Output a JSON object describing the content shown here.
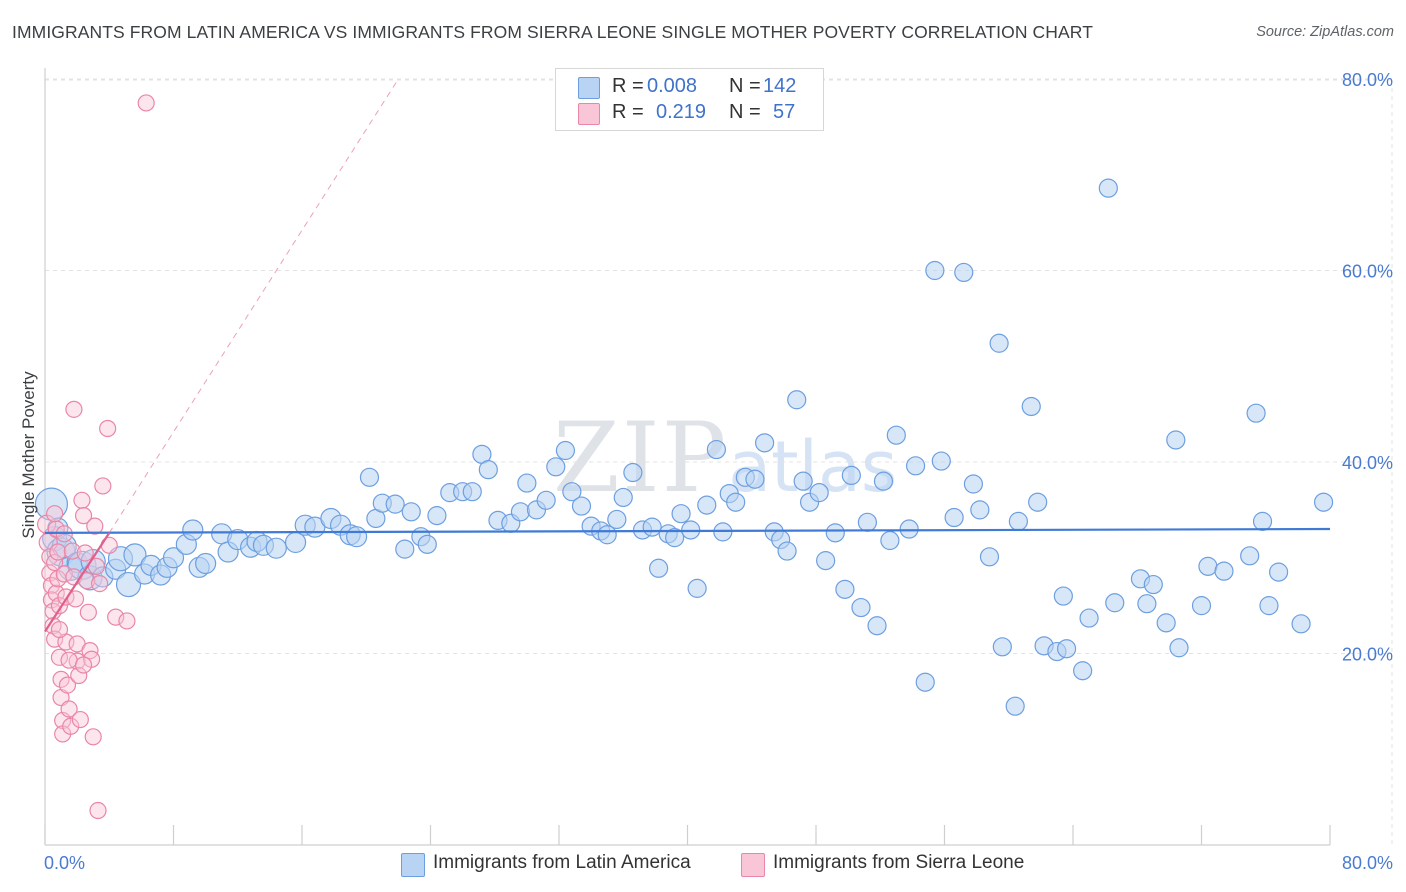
{
  "title": "IMMIGRANTS FROM LATIN AMERICA VS IMMIGRANTS FROM SIERRA LEONE SINGLE MOTHER POVERTY CORRELATION CHART",
  "source": "Source: ZipAtlas.com",
  "watermark": {
    "zip": "ZIP",
    "atlas": "atlas"
  },
  "colors": {
    "blue_fill": "#b8d3f3",
    "blue_stroke": "#6d9fe0",
    "blue_line": "#3f7ad6",
    "pink_fill": "#f8c6d6",
    "pink_stroke": "#ea86a8",
    "pink_line": "#e0608c",
    "grid": "#e3e3e3",
    "tick_text": "#4a7bd0"
  },
  "legend": {
    "rows": [
      {
        "r_label": "R =",
        "r_value": "0.008",
        "n_label": "N =",
        "n_value": "142"
      },
      {
        "r_label": "R =",
        "r_value": "0.219",
        "n_label": "N =",
        "n_value": "57"
      }
    ]
  },
  "bottom_legend": [
    "Immigrants from Latin America",
    "Immigrants from Sierra Leone"
  ],
  "chart_data": {
    "type": "scatter",
    "title": "IMMIGRANTS FROM LATIN AMERICA VS IMMIGRANTS FROM SIERRA LEONE SINGLE MOTHER POVERTY CORRELATION CHART",
    "xlabel": "",
    "ylabel": "Single Mother Poverty",
    "xlim": [
      0,
      80
    ],
    "ylim": [
      0,
      80
    ],
    "x_tick_labels": [
      "0.0%",
      "80.0%"
    ],
    "y_ticks": [
      20,
      40,
      60,
      80
    ],
    "y_tick_labels": [
      "20.0%",
      "40.0%",
      "60.0%",
      "80.0%"
    ],
    "grid": true,
    "series": [
      {
        "name": "Immigrants from Latin America",
        "color": "blue",
        "R": 0.008,
        "N": 142,
        "trend": {
          "x": [
            0,
            80
          ],
          "y": [
            32.6,
            33.0
          ]
        },
        "points": [
          [
            0.4,
            35.6,
            16
          ],
          [
            0.6,
            32.0,
            12
          ],
          [
            0.8,
            33.1,
            10
          ],
          [
            1.0,
            30.6,
            14
          ],
          [
            1.2,
            31.2,
            12
          ],
          [
            1.6,
            28.9,
            12
          ],
          [
            2.0,
            29.5,
            10
          ],
          [
            2.3,
            29.2,
            14
          ],
          [
            2.8,
            27.9,
            12
          ],
          [
            3.0,
            29.6,
            12
          ],
          [
            3.6,
            28.0,
            10
          ],
          [
            4.4,
            28.8,
            10
          ],
          [
            4.7,
            29.9,
            12
          ],
          [
            5.2,
            27.2,
            12
          ],
          [
            5.6,
            30.3,
            11
          ],
          [
            6.2,
            28.3,
            10
          ],
          [
            6.6,
            29.2,
            10
          ],
          [
            7.2,
            28.2,
            10
          ],
          [
            7.6,
            29.0,
            10
          ],
          [
            8.0,
            30.0,
            10
          ],
          [
            8.8,
            31.4,
            10
          ],
          [
            9.2,
            32.9,
            10
          ],
          [
            9.6,
            29.0,
            10
          ],
          [
            10.0,
            29.4,
            10
          ],
          [
            11.0,
            32.5,
            10
          ],
          [
            11.4,
            30.6,
            10
          ],
          [
            12.0,
            31.9,
            10
          ],
          [
            12.8,
            31.1,
            10
          ],
          [
            13.2,
            31.7,
            10
          ],
          [
            13.6,
            31.3,
            10
          ],
          [
            14.4,
            31.0,
            10
          ],
          [
            15.6,
            31.6,
            10
          ],
          [
            16.2,
            33.4,
            10
          ],
          [
            16.8,
            33.2,
            10
          ],
          [
            17.8,
            34.1,
            10
          ],
          [
            18.4,
            33.4,
            10
          ],
          [
            19.0,
            32.4,
            10
          ],
          [
            19.4,
            32.2,
            10
          ],
          [
            20.2,
            38.4,
            9
          ],
          [
            20.6,
            34.1,
            9
          ],
          [
            21.0,
            35.7,
            9
          ],
          [
            21.8,
            35.6,
            9
          ],
          [
            22.4,
            30.9,
            9
          ],
          [
            22.8,
            34.8,
            9
          ],
          [
            23.4,
            32.2,
            9
          ],
          [
            23.8,
            31.4,
            9
          ],
          [
            24.4,
            34.4,
            9
          ],
          [
            25.2,
            36.8,
            9
          ],
          [
            26.0,
            36.9,
            9
          ],
          [
            26.6,
            36.9,
            9
          ],
          [
            27.2,
            40.8,
            9
          ],
          [
            27.6,
            39.2,
            9
          ],
          [
            28.2,
            33.9,
            9
          ],
          [
            29.0,
            33.6,
            9
          ],
          [
            29.6,
            34.8,
            9
          ],
          [
            30.0,
            37.8,
            9
          ],
          [
            30.6,
            35.0,
            9
          ],
          [
            31.2,
            36.0,
            9
          ],
          [
            31.8,
            39.5,
            9
          ],
          [
            32.4,
            41.2,
            9
          ],
          [
            32.8,
            36.9,
            9
          ],
          [
            33.4,
            35.4,
            9
          ],
          [
            34.0,
            33.3,
            9
          ],
          [
            34.6,
            32.8,
            9
          ],
          [
            35.0,
            32.4,
            9
          ],
          [
            35.6,
            34.0,
            9
          ],
          [
            36.0,
            36.3,
            9
          ],
          [
            36.6,
            38.9,
            9
          ],
          [
            37.2,
            32.9,
            9
          ],
          [
            37.8,
            33.2,
            9
          ],
          [
            38.2,
            28.9,
            9
          ],
          [
            38.8,
            32.5,
            9
          ],
          [
            39.2,
            32.1,
            9
          ],
          [
            39.6,
            34.6,
            9
          ],
          [
            40.2,
            32.9,
            9
          ],
          [
            40.6,
            26.8,
            9
          ],
          [
            41.2,
            35.5,
            9
          ],
          [
            41.8,
            41.3,
            9
          ],
          [
            42.2,
            32.7,
            9
          ],
          [
            42.6,
            36.7,
            9
          ],
          [
            43.0,
            35.8,
            9
          ],
          [
            43.6,
            38.4,
            9
          ],
          [
            44.2,
            38.2,
            9
          ],
          [
            44.8,
            42.0,
            9
          ],
          [
            45.4,
            32.7,
            9
          ],
          [
            45.8,
            31.9,
            9
          ],
          [
            46.2,
            30.7,
            9
          ],
          [
            46.8,
            46.5,
            9
          ],
          [
            47.2,
            38.0,
            9
          ],
          [
            47.6,
            35.8,
            9
          ],
          [
            48.2,
            36.8,
            9
          ],
          [
            48.6,
            29.7,
            9
          ],
          [
            49.2,
            32.6,
            9
          ],
          [
            49.8,
            26.7,
            9
          ],
          [
            50.2,
            38.6,
            9
          ],
          [
            50.8,
            24.8,
            9
          ],
          [
            51.2,
            33.7,
            9
          ],
          [
            51.8,
            22.9,
            9
          ],
          [
            52.2,
            38.0,
            9
          ],
          [
            52.6,
            31.8,
            9
          ],
          [
            53.0,
            42.8,
            9
          ],
          [
            53.8,
            33.0,
            9
          ],
          [
            54.2,
            39.6,
            9
          ],
          [
            54.8,
            17.0,
            9
          ],
          [
            55.4,
            60.0,
            9
          ],
          [
            55.8,
            40.1,
            9
          ],
          [
            56.6,
            34.2,
            9
          ],
          [
            57.2,
            59.8,
            9
          ],
          [
            57.8,
            37.7,
            9
          ],
          [
            58.2,
            35.0,
            9
          ],
          [
            58.8,
            30.1,
            9
          ],
          [
            59.4,
            52.4,
            9
          ],
          [
            59.6,
            20.7,
            9
          ],
          [
            60.4,
            14.5,
            9
          ],
          [
            60.6,
            33.8,
            9
          ],
          [
            61.4,
            45.8,
            9
          ],
          [
            61.8,
            35.8,
            9
          ],
          [
            62.2,
            20.8,
            9
          ],
          [
            63.0,
            20.2,
            9
          ],
          [
            63.4,
            26.0,
            9
          ],
          [
            63.6,
            20.5,
            9
          ],
          [
            64.6,
            18.2,
            9
          ],
          [
            65.0,
            23.7,
            9
          ],
          [
            66.2,
            68.6,
            9
          ],
          [
            66.6,
            25.3,
            9
          ],
          [
            68.2,
            27.8,
            9
          ],
          [
            68.6,
            25.2,
            9
          ],
          [
            69.0,
            27.2,
            9
          ],
          [
            69.8,
            23.2,
            9
          ],
          [
            70.4,
            42.3,
            9
          ],
          [
            70.6,
            20.6,
            9
          ],
          [
            72.0,
            25.0,
            9
          ],
          [
            72.4,
            29.1,
            9
          ],
          [
            73.4,
            28.6,
            9
          ],
          [
            75.0,
            30.2,
            9
          ],
          [
            75.4,
            45.1,
            9
          ],
          [
            75.8,
            33.8,
            9
          ],
          [
            76.2,
            25.0,
            9
          ],
          [
            76.8,
            28.5,
            9
          ],
          [
            78.2,
            23.1,
            9
          ],
          [
            79.6,
            35.8,
            9
          ]
        ]
      },
      {
        "name": "Immigrants from Sierra Leone",
        "color": "pink",
        "R": 0.219,
        "N": 57,
        "trend": {
          "x": [
            0,
            4
          ],
          "y": [
            22.3,
            32.6
          ]
        },
        "trend_extension": {
          "x": [
            4,
            22
          ],
          "y": [
            32.6,
            80.0
          ]
        },
        "points": [
          [
            0.1,
            33.5,
            9
          ],
          [
            0.2,
            31.6,
            9
          ],
          [
            0.3,
            30.1,
            8
          ],
          [
            0.3,
            28.4,
            8
          ],
          [
            0.4,
            27.1,
            8
          ],
          [
            0.4,
            25.6,
            8
          ],
          [
            0.5,
            24.4,
            8
          ],
          [
            0.5,
            22.9,
            8
          ],
          [
            0.6,
            21.5,
            8
          ],
          [
            0.6,
            29.5,
            8
          ],
          [
            0.7,
            26.3,
            8
          ],
          [
            0.7,
            33.0,
            8
          ],
          [
            0.8,
            30.6,
            8
          ],
          [
            0.8,
            27.8,
            8
          ],
          [
            0.9,
            25.0,
            8
          ],
          [
            0.9,
            19.6,
            8
          ],
          [
            1.0,
            17.3,
            8
          ],
          [
            1.0,
            15.4,
            8
          ],
          [
            1.1,
            13.0,
            8
          ],
          [
            1.1,
            11.6,
            8
          ],
          [
            1.2,
            32.5,
            8
          ],
          [
            1.2,
            28.3,
            8
          ],
          [
            1.3,
            25.9,
            8
          ],
          [
            1.3,
            21.2,
            8
          ],
          [
            1.4,
            16.7,
            8
          ],
          [
            1.5,
            14.2,
            8
          ],
          [
            1.6,
            12.4,
            8
          ],
          [
            1.7,
            30.7,
            8
          ],
          [
            1.8,
            28.0,
            8
          ],
          [
            1.9,
            25.7,
            8
          ],
          [
            2.0,
            21.0,
            8
          ],
          [
            2.0,
            19.2,
            8
          ],
          [
            2.1,
            17.7,
            8
          ],
          [
            2.2,
            13.1,
            8
          ],
          [
            2.3,
            36.0,
            8
          ],
          [
            2.4,
            34.4,
            8
          ],
          [
            2.5,
            30.5,
            8
          ],
          [
            2.6,
            27.6,
            8
          ],
          [
            2.7,
            24.3,
            8
          ],
          [
            2.8,
            20.3,
            8
          ],
          [
            2.9,
            19.4,
            8
          ],
          [
            3.0,
            11.3,
            8
          ],
          [
            3.1,
            33.3,
            8
          ],
          [
            3.2,
            29.1,
            8
          ],
          [
            3.4,
            27.3,
            8
          ],
          [
            3.6,
            37.5,
            8
          ],
          [
            3.9,
            43.5,
            8
          ],
          [
            1.8,
            45.5,
            8
          ],
          [
            0.9,
            22.5,
            8
          ],
          [
            1.5,
            19.3,
            8
          ],
          [
            2.4,
            18.8,
            8
          ],
          [
            4.0,
            31.3,
            8
          ],
          [
            4.4,
            23.8,
            8
          ],
          [
            5.1,
            23.4,
            8
          ],
          [
            3.3,
            3.6,
            8
          ],
          [
            6.3,
            77.5,
            8
          ],
          [
            0.6,
            34.6,
            8
          ]
        ]
      }
    ]
  }
}
